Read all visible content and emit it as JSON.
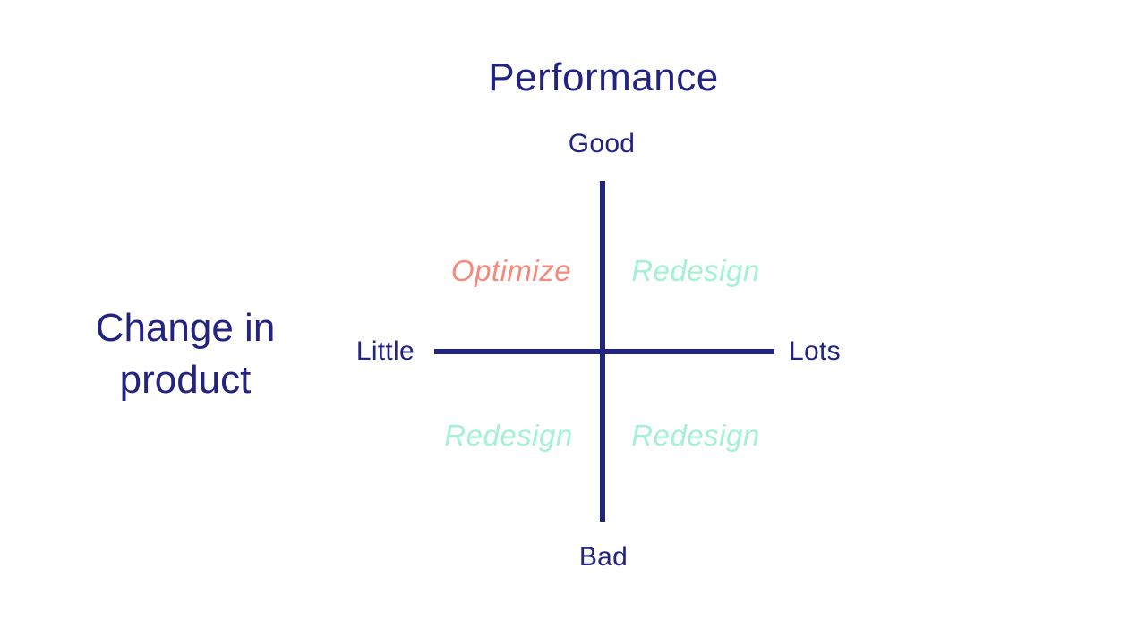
{
  "colors": {
    "navy": "#232382",
    "salmon": "#F5897B",
    "mint": "#A3F2D2",
    "background": "#FFFFFF"
  },
  "diagram": {
    "title": "Performance",
    "left_axis_title_line1": "Change in",
    "left_axis_title_line2": "product",
    "y_axis": {
      "top_label": "Good",
      "bottom_label": "Bad"
    },
    "x_axis": {
      "left_label": "Little",
      "right_label": "Lots"
    },
    "quadrants": {
      "top_left": "Optimize",
      "top_right": "Redesign",
      "bottom_left": "Redesign",
      "bottom_right": "Redesign"
    }
  }
}
